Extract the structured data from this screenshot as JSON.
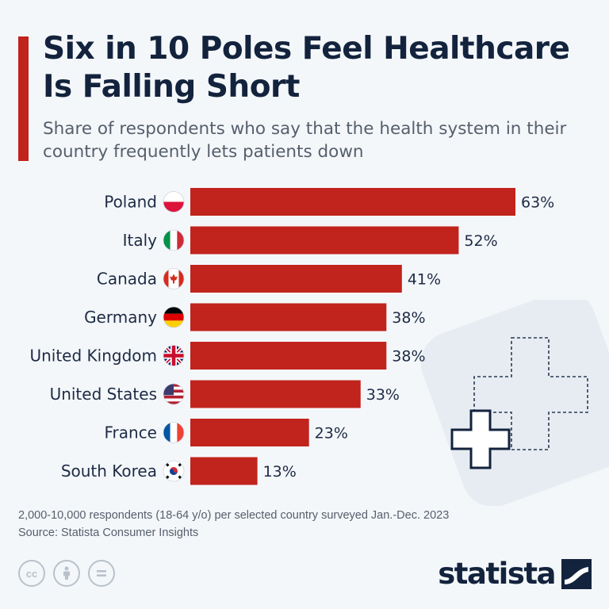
{
  "header": {
    "title": "Six in 10 Poles Feel Healthcare Is Falling Short",
    "subtitle": "Share of respondents who say that the health system in their country frequently lets patients down"
  },
  "chart_data": {
    "type": "bar",
    "orientation": "horizontal",
    "categories": [
      "Poland",
      "Italy",
      "Canada",
      "Germany",
      "United Kingdom",
      "United States",
      "France",
      "South Korea"
    ],
    "values": [
      63,
      52,
      41,
      38,
      38,
      33,
      23,
      13
    ],
    "value_labels": [
      "63%",
      "52%",
      "41%",
      "38%",
      "38%",
      "33%",
      "23%",
      "13%"
    ],
    "flags": [
      "poland-flag",
      "italy-flag",
      "canada-flag",
      "germany-flag",
      "uk-flag",
      "usa-flag",
      "france-flag",
      "south-korea-flag"
    ],
    "unit": "%",
    "xlim": [
      0,
      63
    ],
    "bar_color": "#c1231d",
    "title": "Six in 10 Poles Feel Healthcare Is Falling Short",
    "xlabel": "",
    "ylabel": ""
  },
  "footer": {
    "note": "2,000-10,000 respondents (18-64 y/o) per selected country surveyed Jan.-Dec. 2023",
    "source": "Source: Statista Consumer Insights",
    "brand": "statista",
    "license_icons": [
      "creative-commons-icon",
      "attribution-icon",
      "no-derivatives-icon"
    ]
  }
}
